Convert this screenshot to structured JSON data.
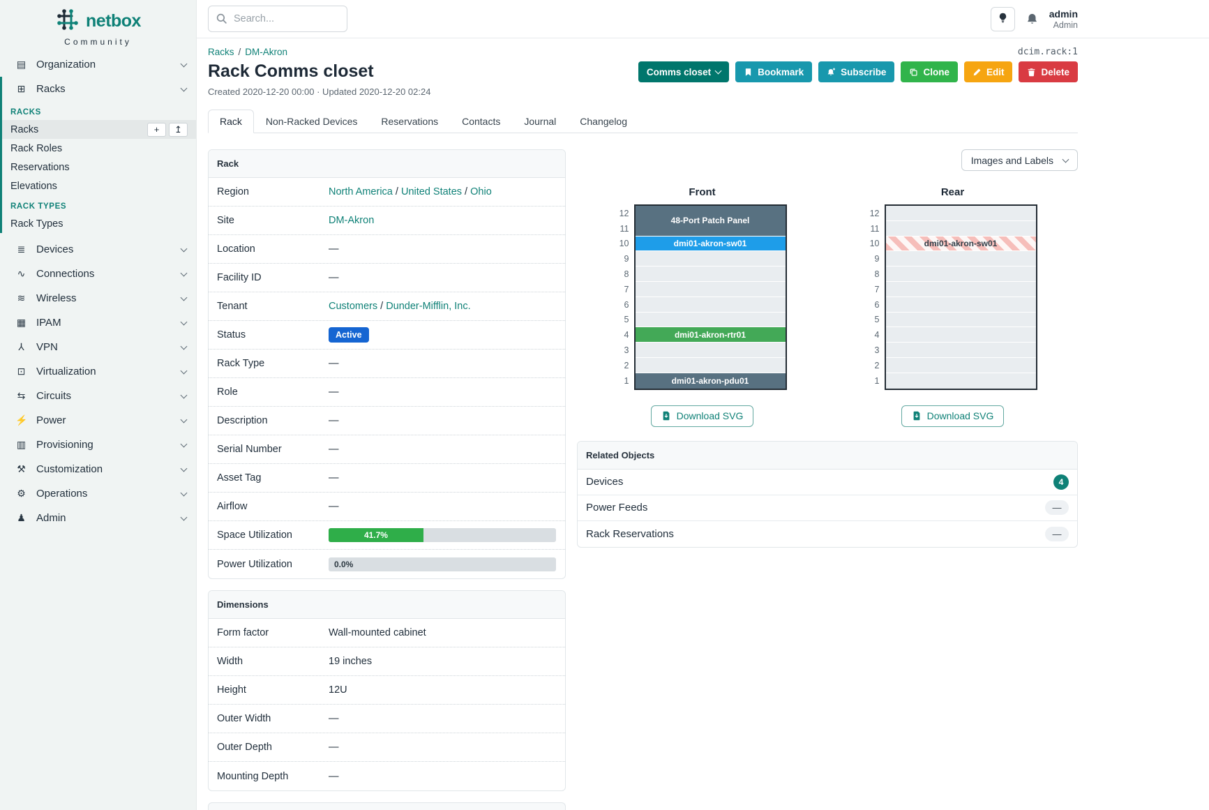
{
  "brand": {
    "logo_text": "netbox",
    "logo_subtitle": "Community"
  },
  "topbar": {
    "search_placeholder": "Search...",
    "user_name": "admin",
    "user_role": "Admin"
  },
  "object_id": "dcim.rack:1",
  "breadcrumb": {
    "items": [
      "Racks",
      "DM-Akron"
    ]
  },
  "page": {
    "title": "Rack Comms closet",
    "meta": "Created 2020-12-20 00:00 · Updated 2020-12-20 02:24"
  },
  "actions": [
    {
      "label": "Comms closet",
      "style": "dark-teal",
      "icon": "chevron-down-icon"
    },
    {
      "label": "Bookmark",
      "style": "cyan",
      "icon": "bookmark-icon"
    },
    {
      "label": "Subscribe",
      "style": "cyan",
      "icon": "bell-plus-icon"
    },
    {
      "label": "Clone",
      "style": "green",
      "icon": "copy-icon"
    },
    {
      "label": "Edit",
      "style": "orange",
      "icon": "pencil-icon"
    },
    {
      "label": "Delete",
      "style": "red",
      "icon": "trash-icon"
    }
  ],
  "tabs": {
    "active_index": 0,
    "items": [
      "Rack",
      "Non-Racked Devices",
      "Reservations",
      "Contacts",
      "Journal",
      "Changelog"
    ]
  },
  "sidebar": {
    "items": [
      {
        "type": "item",
        "icon": "organization-icon",
        "glyph": "▤",
        "label": "Organization",
        "chevron": true
      },
      {
        "type": "group",
        "icon": "racks-icon",
        "glyph": "⊞",
        "label": "Racks",
        "chevron": true,
        "children": [
          {
            "type": "section",
            "label": "RACKS"
          },
          {
            "type": "link",
            "label": "Racks",
            "active": true,
            "buttons": [
              {
                "name": "add-button",
                "glyph": "+"
              },
              {
                "name": "import-button",
                "glyph": "↥"
              }
            ]
          },
          {
            "type": "link",
            "label": "Rack Roles"
          },
          {
            "type": "link",
            "label": "Reservations"
          },
          {
            "type": "link",
            "label": "Elevations"
          },
          {
            "type": "section",
            "label": "RACK TYPES"
          },
          {
            "type": "link",
            "label": "Rack Types"
          }
        ]
      },
      {
        "type": "item",
        "icon": "devices-icon",
        "glyph": "≣",
        "label": "Devices",
        "chevron": true
      },
      {
        "type": "item",
        "icon": "connections-icon",
        "glyph": "∿",
        "label": "Connections",
        "chevron": true
      },
      {
        "type": "item",
        "icon": "wireless-icon",
        "glyph": "≋",
        "label": "Wireless",
        "chevron": true
      },
      {
        "type": "item",
        "icon": "ipam-icon",
        "glyph": "▦",
        "label": "IPAM",
        "chevron": true
      },
      {
        "type": "item",
        "icon": "vpn-icon",
        "glyph": "⅄",
        "label": "VPN",
        "chevron": true
      },
      {
        "type": "item",
        "icon": "virtualization-icon",
        "glyph": "⊡",
        "label": "Virtualization",
        "chevron": true
      },
      {
        "type": "item",
        "icon": "circuits-icon",
        "glyph": "⇆",
        "label": "Circuits",
        "chevron": true
      },
      {
        "type": "item",
        "icon": "power-icon",
        "glyph": "⚡",
        "label": "Power",
        "chevron": true
      },
      {
        "type": "item",
        "icon": "provisioning-icon",
        "glyph": "▥",
        "label": "Provisioning",
        "chevron": true
      },
      {
        "type": "item",
        "icon": "customization-icon",
        "glyph": "⚒",
        "label": "Customization",
        "chevron": true
      },
      {
        "type": "item",
        "icon": "operations-icon",
        "glyph": "⚙",
        "label": "Operations",
        "chevron": true
      },
      {
        "type": "item",
        "icon": "admin-icon",
        "glyph": "♟",
        "label": "Admin",
        "chevron": true
      }
    ]
  },
  "rack_panel": {
    "title": "Rack",
    "rows": [
      {
        "label": "Region",
        "type": "links",
        "parts": [
          "North America",
          "United States",
          "Ohio"
        ]
      },
      {
        "label": "Site",
        "type": "links",
        "parts": [
          "DM-Akron"
        ]
      },
      {
        "label": "Location",
        "type": "text",
        "value": "—"
      },
      {
        "label": "Facility ID",
        "type": "text",
        "value": "—"
      },
      {
        "label": "Tenant",
        "type": "links",
        "parts": [
          "Customers",
          "Dunder-Mifflin, Inc."
        ]
      },
      {
        "label": "Status",
        "type": "badge",
        "value": "Active"
      },
      {
        "label": "Rack Type",
        "type": "text",
        "value": "—"
      },
      {
        "label": "Role",
        "type": "text",
        "value": "—"
      },
      {
        "label": "Description",
        "type": "text",
        "value": "—"
      },
      {
        "label": "Serial Number",
        "type": "text",
        "value": "—"
      },
      {
        "label": "Asset Tag",
        "type": "text",
        "value": "—"
      },
      {
        "label": "Airflow",
        "type": "text",
        "value": "—"
      },
      {
        "label": "Space Utilization",
        "type": "progress",
        "percent": 41.7,
        "text": "41.7%"
      },
      {
        "label": "Power Utilization",
        "type": "progress",
        "percent": 0,
        "text": "0.0%"
      }
    ]
  },
  "dimensions_panel": {
    "title": "Dimensions",
    "rows": [
      {
        "label": "Form factor",
        "value": "Wall-mounted cabinet"
      },
      {
        "label": "Width",
        "value": "19 inches"
      },
      {
        "label": "Height",
        "value": "12U"
      },
      {
        "label": "Outer Width",
        "value": "—"
      },
      {
        "label": "Outer Depth",
        "value": "—"
      },
      {
        "label": "Mounting Depth",
        "value": "—"
      }
    ]
  },
  "elevations": {
    "toolbar_label": "Images and Labels",
    "download_label": "Download SVG",
    "unit_count": 12,
    "views": [
      {
        "title": "Front",
        "slots": [
          {
            "u": 2,
            "label": "48-Port Patch Panel",
            "style": "slate"
          },
          {
            "u": 1,
            "label": "dmi01-akron-sw01",
            "style": "blue"
          },
          {
            "u": 5,
            "style": "empty"
          },
          {
            "u": 1,
            "label": "dmi01-akron-rtr01",
            "style": "green"
          },
          {
            "u": 2,
            "style": "empty"
          },
          {
            "u": 1,
            "label": "dmi01-akron-pdu01",
            "style": "slate"
          }
        ]
      },
      {
        "title": "Rear",
        "slots": [
          {
            "u": 2,
            "style": "empty"
          },
          {
            "u": 1,
            "label": "dmi01-akron-sw01",
            "style": "ghost"
          },
          {
            "u": 9,
            "style": "empty"
          }
        ]
      }
    ]
  },
  "related_objects": {
    "title": "Related Objects",
    "rows": [
      {
        "label": "Devices",
        "badge": "4",
        "badge_type": "count"
      },
      {
        "label": "Power Feeds",
        "badge": "—",
        "badge_type": "empty"
      },
      {
        "label": "Rack Reservations",
        "badge": "—",
        "badge_type": "empty"
      }
    ]
  },
  "colors": {
    "teal": "#0f8177",
    "sidebar_bg": "#f0f4f3",
    "status_active": "#1565d2",
    "progress_green": "#2fae49",
    "slot_slate": "#587181",
    "slot_blue": "#1e9de9",
    "slot_green": "#43a957",
    "button_cyan": "#1898ad",
    "button_green": "#31b44b",
    "button_orange": "#f6a511",
    "button_red": "#d93b42",
    "button_dark_teal": "#00766c"
  }
}
